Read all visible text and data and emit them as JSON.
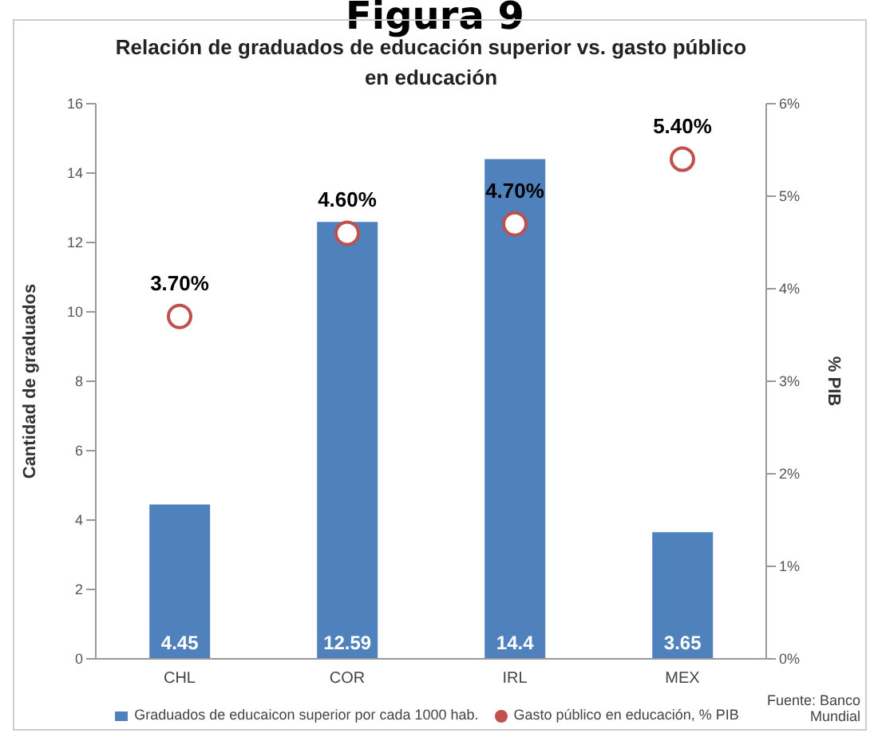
{
  "chart_data": {
    "type": "bar",
    "title": "Figura 9",
    "subtitle": "Relación de graduados de educación superior vs. gasto público en educación",
    "ylabel": "Cantidad de graduados",
    "y2label": "% PIB",
    "categories": [
      "CHL",
      "COR",
      "IRL",
      "MEX"
    ],
    "series": [
      {
        "name": "Graduados de educaicon superior por cada 1000  hab.",
        "color": "#4f81bd",
        "values": [
          4.45,
          12.59,
          14.4,
          3.65
        ],
        "value_labels": [
          "4.45",
          "12.59",
          "14.4",
          "3.65"
        ]
      },
      {
        "name": "Gasto público en educación, % PIB",
        "type": "scatter",
        "axis": "y2",
        "color": "#c0504d",
        "values": [
          3.7,
          4.6,
          4.7,
          5.4
        ],
        "value_labels": [
          "3.70%",
          "4.60%",
          "4.70%",
          "5.40%"
        ]
      }
    ],
    "ylim": [
      0,
      16
    ],
    "yticks": [
      0,
      2,
      4,
      6,
      8,
      10,
      12,
      14,
      16
    ],
    "y2lim": [
      0,
      6
    ],
    "y2ticks": [
      {
        "value": 0,
        "label": "0%"
      },
      {
        "value": 1,
        "label": "1%"
      },
      {
        "value": 2,
        "label": "2%"
      },
      {
        "value": 3,
        "label": "3%"
      },
      {
        "value": 4,
        "label": "4%"
      },
      {
        "value": 5,
        "label": "5%"
      },
      {
        "value": 6,
        "label": "6%"
      }
    ],
    "marker": "circle",
    "legend": "bottom",
    "grid": false,
    "annotations": [
      "Fuente: Banco Mundial"
    ]
  }
}
